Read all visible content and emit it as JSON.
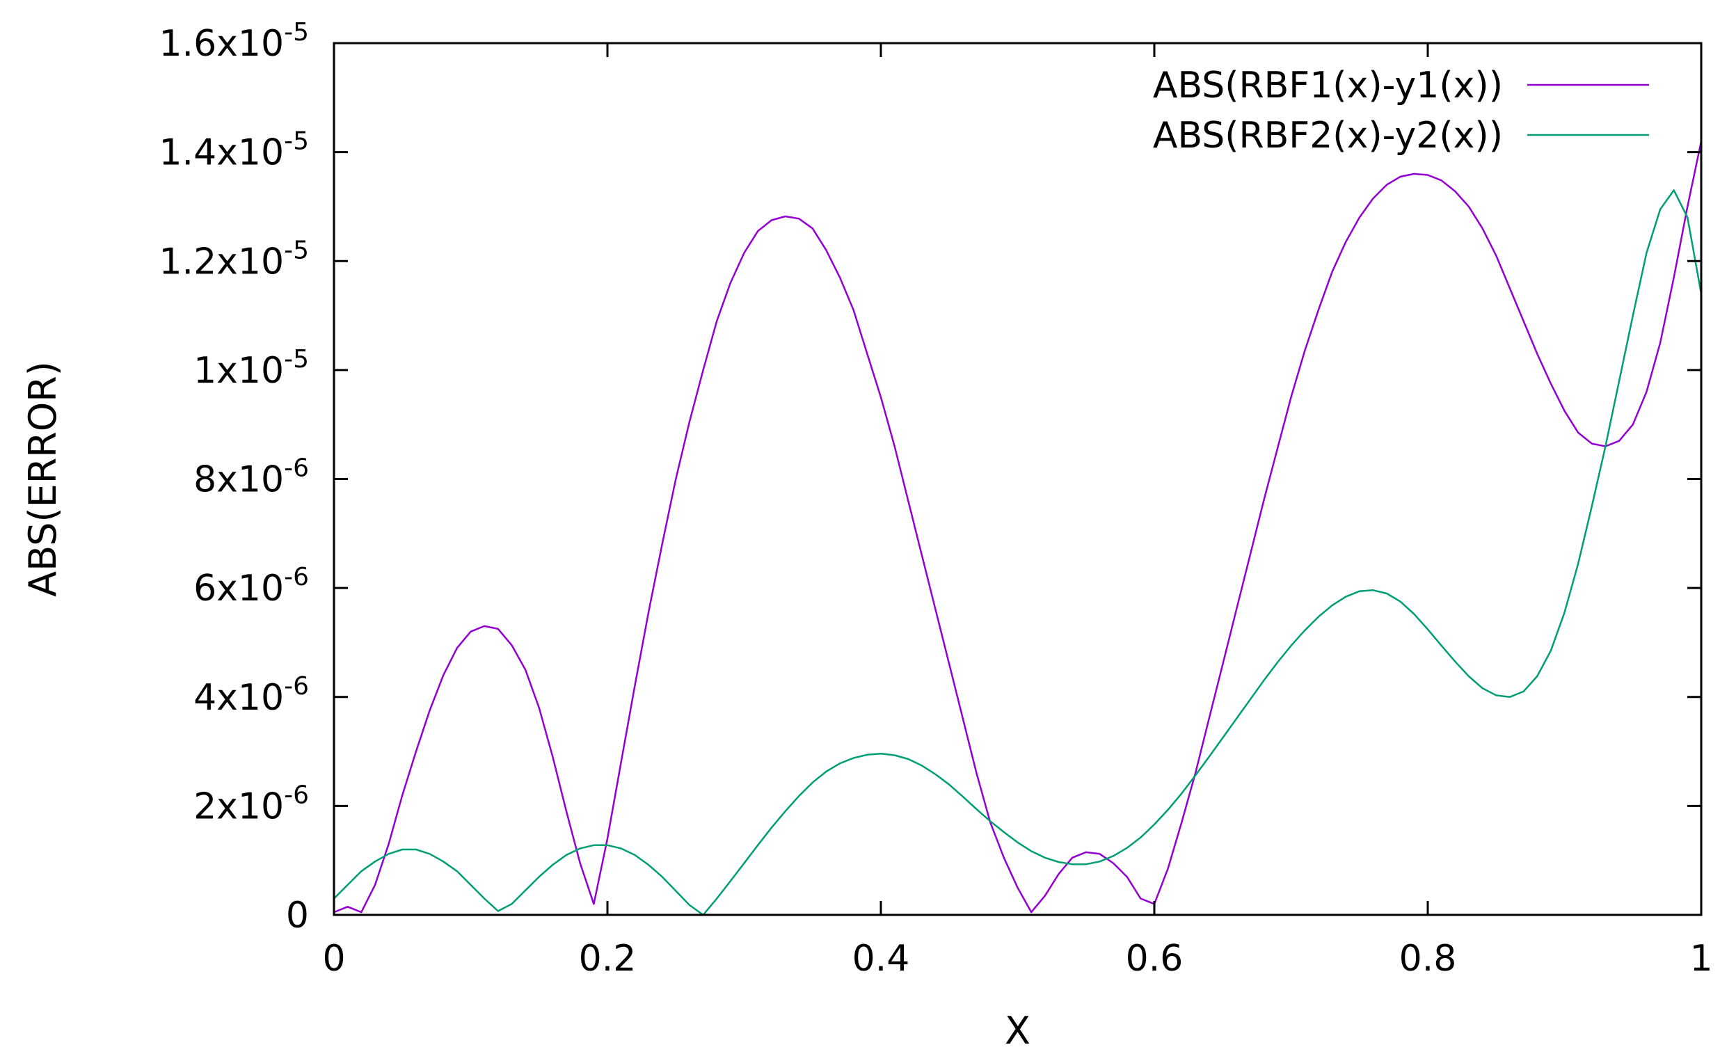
{
  "chart_data": {
    "type": "line",
    "title": "",
    "xlabel": "X",
    "ylabel": "ABS(ERROR)",
    "xlim": [
      0,
      1
    ],
    "ylim": [
      0,
      1.6e-05
    ],
    "grid": false,
    "legend_position": "top-right",
    "x_ticks": [
      {
        "value": 0,
        "label": "0"
      },
      {
        "value": 0.2,
        "label": "0.2"
      },
      {
        "value": 0.4,
        "label": "0.4"
      },
      {
        "value": 0.6,
        "label": "0.6"
      },
      {
        "value": 0.8,
        "label": "0.8"
      },
      {
        "value": 1,
        "label": "1"
      }
    ],
    "y_ticks": [
      {
        "value": 0,
        "mantissa": "0",
        "exponent": ""
      },
      {
        "value": 2e-06,
        "mantissa": "2x10",
        "exponent": "-6"
      },
      {
        "value": 4e-06,
        "mantissa": "4x10",
        "exponent": "-6"
      },
      {
        "value": 6e-06,
        "mantissa": "6x10",
        "exponent": "-6"
      },
      {
        "value": 8e-06,
        "mantissa": "8x10",
        "exponent": "-6"
      },
      {
        "value": 1e-05,
        "mantissa": "1x10",
        "exponent": "-5"
      },
      {
        "value": 1.2e-05,
        "mantissa": "1.2x10",
        "exponent": "-5"
      },
      {
        "value": 1.4e-05,
        "mantissa": "1.4x10",
        "exponent": "-5"
      },
      {
        "value": 1.6e-05,
        "mantissa": "1.6x10",
        "exponent": "-5"
      }
    ],
    "series": [
      {
        "name": "ABS(RBF1(x)-y1(x))",
        "color": "#9400d3",
        "points": [
          [
            0.0,
            5e-08
          ],
          [
            0.01,
            1.5e-07
          ],
          [
            0.02,
            5e-08
          ],
          [
            0.03,
            5.5e-07
          ],
          [
            0.04,
            1.3e-06
          ],
          [
            0.05,
            2.2e-06
          ],
          [
            0.06,
            3e-06
          ],
          [
            0.07,
            3.75e-06
          ],
          [
            0.08,
            4.4e-06
          ],
          [
            0.09,
            4.9e-06
          ],
          [
            0.1,
            5.2e-06
          ],
          [
            0.11,
            5.3e-06
          ],
          [
            0.12,
            5.25e-06
          ],
          [
            0.13,
            4.95e-06
          ],
          [
            0.14,
            4.5e-06
          ],
          [
            0.15,
            3.8e-06
          ],
          [
            0.16,
            2.9e-06
          ],
          [
            0.17,
            1.9e-06
          ],
          [
            0.18,
            9.5e-07
          ],
          [
            0.19,
            2e-07
          ],
          [
            0.2,
            1.4e-06
          ],
          [
            0.21,
            2.8e-06
          ],
          [
            0.22,
            4.2e-06
          ],
          [
            0.23,
            5.55e-06
          ],
          [
            0.24,
            6.8e-06
          ],
          [
            0.25,
            8e-06
          ],
          [
            0.26,
            9.05e-06
          ],
          [
            0.27,
            1e-05
          ],
          [
            0.28,
            1.09e-05
          ],
          [
            0.29,
            1.16e-05
          ],
          [
            0.3,
            1.215e-05
          ],
          [
            0.31,
            1.255e-05
          ],
          [
            0.32,
            1.275e-05
          ],
          [
            0.33,
            1.282e-05
          ],
          [
            0.34,
            1.278e-05
          ],
          [
            0.35,
            1.26e-05
          ],
          [
            0.36,
            1.22e-05
          ],
          [
            0.37,
            1.17e-05
          ],
          [
            0.38,
            1.11e-05
          ],
          [
            0.39,
            1.03e-05
          ],
          [
            0.4,
            9.5e-06
          ],
          [
            0.41,
            8.6e-06
          ],
          [
            0.42,
            7.6e-06
          ],
          [
            0.43,
            6.6e-06
          ],
          [
            0.44,
            5.6e-06
          ],
          [
            0.45,
            4.6e-06
          ],
          [
            0.46,
            3.6e-06
          ],
          [
            0.47,
            2.6e-06
          ],
          [
            0.48,
            1.7e-06
          ],
          [
            0.49,
            1.05e-06
          ],
          [
            0.5,
            5e-07
          ],
          [
            0.51,
            5e-08
          ],
          [
            0.52,
            3.5e-07
          ],
          [
            0.53,
            7.5e-07
          ],
          [
            0.54,
            1.05e-06
          ],
          [
            0.55,
            1.15e-06
          ],
          [
            0.56,
            1.12e-06
          ],
          [
            0.57,
            9.5e-07
          ],
          [
            0.58,
            7e-07
          ],
          [
            0.59,
            3e-07
          ],
          [
            0.6,
            2e-07
          ],
          [
            0.61,
            8.5e-07
          ],
          [
            0.62,
            1.7e-06
          ],
          [
            0.63,
            2.6e-06
          ],
          [
            0.64,
            3.6e-06
          ],
          [
            0.65,
            4.6e-06
          ],
          [
            0.66,
            5.6e-06
          ],
          [
            0.67,
            6.6e-06
          ],
          [
            0.68,
            7.6e-06
          ],
          [
            0.69,
            8.55e-06
          ],
          [
            0.7,
            9.5e-06
          ],
          [
            0.71,
            1.035e-05
          ],
          [
            0.72,
            1.11e-05
          ],
          [
            0.73,
            1.18e-05
          ],
          [
            0.74,
            1.235e-05
          ],
          [
            0.75,
            1.28e-05
          ],
          [
            0.76,
            1.315e-05
          ],
          [
            0.77,
            1.34e-05
          ],
          [
            0.78,
            1.355e-05
          ],
          [
            0.79,
            1.36e-05
          ],
          [
            0.8,
            1.358e-05
          ],
          [
            0.81,
            1.348e-05
          ],
          [
            0.82,
            1.328e-05
          ],
          [
            0.83,
            1.3e-05
          ],
          [
            0.84,
            1.26e-05
          ],
          [
            0.85,
            1.21e-05
          ],
          [
            0.86,
            1.15e-05
          ],
          [
            0.87,
            1.09e-05
          ],
          [
            0.88,
            1.03e-05
          ],
          [
            0.89,
            9.75e-06
          ],
          [
            0.9,
            9.25e-06
          ],
          [
            0.91,
            8.85e-06
          ],
          [
            0.92,
            8.65e-06
          ],
          [
            0.93,
            8.6e-06
          ],
          [
            0.94,
            8.7e-06
          ],
          [
            0.95,
            9e-06
          ],
          [
            0.96,
            9.6e-06
          ],
          [
            0.97,
            1.05e-05
          ],
          [
            0.98,
            1.17e-05
          ],
          [
            0.99,
            1.3e-05
          ],
          [
            1.0,
            1.42e-05
          ]
        ]
      },
      {
        "name": "ABS(RBF2(x)-y2(x))",
        "color": "#009e73",
        "points": [
          [
            0.0,
            3e-07
          ],
          [
            0.01,
            5.5e-07
          ],
          [
            0.02,
            8e-07
          ],
          [
            0.03,
            9.8e-07
          ],
          [
            0.04,
            1.12e-06
          ],
          [
            0.05,
            1.2e-06
          ],
          [
            0.06,
            1.2e-06
          ],
          [
            0.07,
            1.12e-06
          ],
          [
            0.08,
            9.8e-07
          ],
          [
            0.09,
            8e-07
          ],
          [
            0.1,
            5.5e-07
          ],
          [
            0.11,
            3e-07
          ],
          [
            0.12,
            7e-08
          ],
          [
            0.13,
            2e-07
          ],
          [
            0.14,
            4.5e-07
          ],
          [
            0.15,
            7e-07
          ],
          [
            0.16,
            9.2e-07
          ],
          [
            0.17,
            1.1e-06
          ],
          [
            0.18,
            1.22e-06
          ],
          [
            0.19,
            1.28e-06
          ],
          [
            0.2,
            1.28e-06
          ],
          [
            0.21,
            1.22e-06
          ],
          [
            0.22,
            1.1e-06
          ],
          [
            0.23,
            9.2e-07
          ],
          [
            0.24,
            7e-07
          ],
          [
            0.25,
            4.4e-07
          ],
          [
            0.26,
            1.8e-07
          ],
          [
            0.27,
            0.0
          ],
          [
            0.28,
            3e-07
          ],
          [
            0.29,
            6.2e-07
          ],
          [
            0.3,
            9.5e-07
          ],
          [
            0.31,
            1.28e-06
          ],
          [
            0.32,
            1.6e-06
          ],
          [
            0.33,
            1.9e-06
          ],
          [
            0.34,
            2.18e-06
          ],
          [
            0.35,
            2.43e-06
          ],
          [
            0.36,
            2.63e-06
          ],
          [
            0.37,
            2.78e-06
          ],
          [
            0.38,
            2.88e-06
          ],
          [
            0.39,
            2.94e-06
          ],
          [
            0.4,
            2.96e-06
          ],
          [
            0.41,
            2.93e-06
          ],
          [
            0.42,
            2.86e-06
          ],
          [
            0.43,
            2.74e-06
          ],
          [
            0.44,
            2.58e-06
          ],
          [
            0.45,
            2.39e-06
          ],
          [
            0.46,
            2.17e-06
          ],
          [
            0.47,
            1.94e-06
          ],
          [
            0.48,
            1.72e-06
          ],
          [
            0.49,
            1.52e-06
          ],
          [
            0.5,
            1.33e-06
          ],
          [
            0.51,
            1.17e-06
          ],
          [
            0.52,
            1.05e-06
          ],
          [
            0.53,
            9.7e-07
          ],
          [
            0.54,
            9.3e-07
          ],
          [
            0.55,
            9.3e-07
          ],
          [
            0.56,
            9.8e-07
          ],
          [
            0.57,
            1.08e-06
          ],
          [
            0.58,
            1.23e-06
          ],
          [
            0.59,
            1.42e-06
          ],
          [
            0.6,
            1.66e-06
          ],
          [
            0.61,
            1.93e-06
          ],
          [
            0.62,
            2.23e-06
          ],
          [
            0.63,
            2.56e-06
          ],
          [
            0.64,
            2.9e-06
          ],
          [
            0.65,
            3.25e-06
          ],
          [
            0.66,
            3.6e-06
          ],
          [
            0.67,
            3.95e-06
          ],
          [
            0.68,
            4.3e-06
          ],
          [
            0.69,
            4.63e-06
          ],
          [
            0.7,
            4.94e-06
          ],
          [
            0.71,
            5.22e-06
          ],
          [
            0.72,
            5.47e-06
          ],
          [
            0.73,
            5.68e-06
          ],
          [
            0.74,
            5.84e-06
          ],
          [
            0.75,
            5.94e-06
          ],
          [
            0.76,
            5.96e-06
          ],
          [
            0.77,
            5.9e-06
          ],
          [
            0.78,
            5.75e-06
          ],
          [
            0.79,
            5.52e-06
          ],
          [
            0.8,
            5.24e-06
          ],
          [
            0.81,
            4.94e-06
          ],
          [
            0.82,
            4.65e-06
          ],
          [
            0.83,
            4.38e-06
          ],
          [
            0.84,
            4.16e-06
          ],
          [
            0.85,
            4.03e-06
          ],
          [
            0.86,
            4e-06
          ],
          [
            0.87,
            4.1e-06
          ],
          [
            0.88,
            4.38e-06
          ],
          [
            0.89,
            4.85e-06
          ],
          [
            0.9,
            5.55e-06
          ],
          [
            0.91,
            6.45e-06
          ],
          [
            0.92,
            7.5e-06
          ],
          [
            0.93,
            8.6e-06
          ],
          [
            0.94,
            9.8e-06
          ],
          [
            0.95,
            1.1e-05
          ],
          [
            0.96,
            1.215e-05
          ],
          [
            0.97,
            1.295e-05
          ],
          [
            0.98,
            1.33e-05
          ],
          [
            0.99,
            1.28e-05
          ],
          [
            1.0,
            1.14e-05
          ]
        ]
      }
    ]
  }
}
